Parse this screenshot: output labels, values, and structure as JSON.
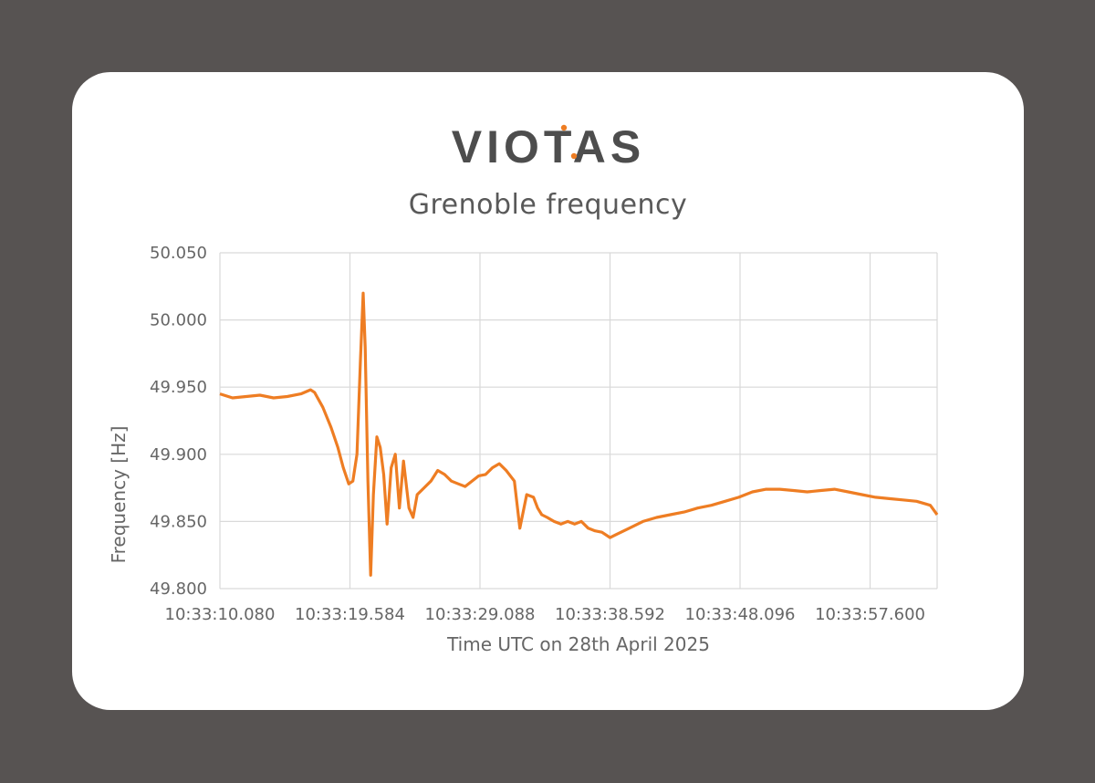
{
  "brand": {
    "name": "VIOTAS",
    "accent_color": "#ee7d23",
    "text_color": "#4d4d4d"
  },
  "chart_data": {
    "type": "line",
    "title": "Grenoble frequency",
    "xlabel": "Time UTC on 28th April 2025",
    "ylabel": "Frequency [Hz]",
    "ylim": [
      49.8,
      50.05
    ],
    "x_tick_labels": [
      "10:33:10.080",
      "10:33:19.584",
      "10:33:29.088",
      "10:33:38.592",
      "10:33:48.096",
      "10:33:57.600"
    ],
    "y_tick_labels": [
      "49.800",
      "49.850",
      "49.900",
      "49.950",
      "50.000",
      "50.050"
    ],
    "grid": true,
    "line_color": "#ee7d23",
    "series": [
      {
        "x_seconds_after_10_33_00": [
          10.08,
          11.0,
          12.0,
          13.0,
          14.0,
          15.0,
          16.0,
          16.7,
          17.0,
          17.6,
          18.2,
          18.7,
          19.1,
          19.5,
          19.8,
          20.1,
          20.35,
          20.55,
          20.7,
          20.9,
          21.1,
          21.3,
          21.55,
          21.8,
          22.05,
          22.3,
          22.6,
          22.9,
          23.2,
          23.5,
          23.9,
          24.2,
          24.5,
          25.0,
          25.5,
          26.0,
          26.5,
          27.0,
          27.5,
          28.0,
          28.5,
          29.0,
          29.5,
          30.0,
          30.5,
          31.0,
          31.6,
          32.0,
          32.5,
          33.0,
          33.3,
          33.6,
          34.0,
          34.5,
          35.0,
          35.5,
          36.0,
          36.5,
          37.0,
          37.5,
          38.0,
          38.6,
          39.0,
          40.0,
          41.0,
          42.0,
          43.0,
          44.0,
          45.0,
          46.0,
          47.0,
          48.0,
          49.0,
          50.0,
          51.0,
          52.0,
          53.0,
          54.0,
          55.0,
          56.0,
          57.0,
          58.0,
          59.0,
          60.0,
          61.0,
          62.0,
          62.5
        ],
        "y_hz": [
          49.945,
          49.942,
          49.943,
          49.944,
          49.942,
          49.943,
          49.945,
          49.948,
          49.946,
          49.935,
          49.92,
          49.905,
          49.89,
          49.878,
          49.88,
          49.9,
          49.97,
          50.02,
          49.98,
          49.88,
          49.81,
          49.87,
          49.913,
          49.905,
          49.885,
          49.848,
          49.89,
          49.9,
          49.86,
          49.895,
          49.86,
          49.853,
          49.87,
          49.875,
          49.88,
          49.888,
          49.885,
          49.88,
          49.878,
          49.876,
          49.88,
          49.884,
          49.885,
          49.89,
          49.893,
          49.888,
          49.88,
          49.845,
          49.87,
          49.868,
          49.86,
          49.855,
          49.853,
          49.85,
          49.848,
          49.85,
          49.848,
          49.85,
          49.845,
          49.843,
          49.842,
          49.838,
          49.84,
          49.845,
          49.85,
          49.853,
          49.855,
          49.857,
          49.86,
          49.862,
          49.865,
          49.868,
          49.872,
          49.874,
          49.874,
          49.873,
          49.872,
          49.873,
          49.874,
          49.872,
          49.87,
          49.868,
          49.867,
          49.866,
          49.865,
          49.862,
          49.855
        ]
      }
    ]
  }
}
